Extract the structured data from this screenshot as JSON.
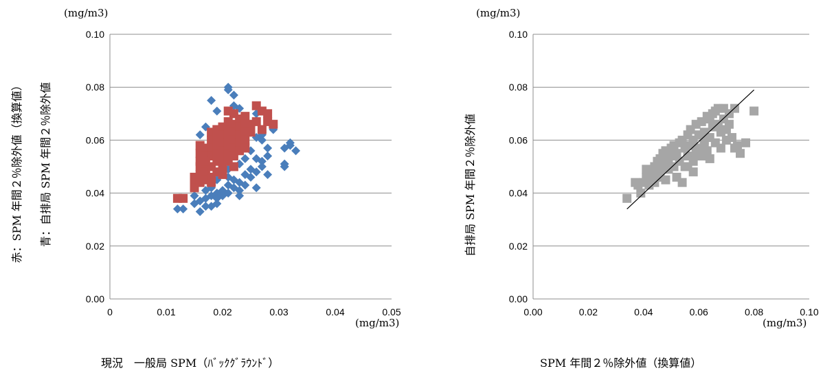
{
  "chart_data": [
    {
      "type": "scatter",
      "xlim": [
        0,
        0.05
      ],
      "ylim": [
        0,
        0.1
      ],
      "x_ticks": [
        "0",
        "0.01",
        "0.02",
        "0.03",
        "0.04",
        "0.05"
      ],
      "y_ticks": [
        "0.00",
        "0.02",
        "0.04",
        "0.06",
        "0.08",
        "0.10"
      ],
      "x_unit": "(mg/m3)",
      "y_unit": "(mg/m3)",
      "xlabel": "現況　一般局 SPM（ﾊﾞｯｸｸﾞﾗｳﾝﾄﾞ）",
      "ylabel_lines": [
        "赤：SPM 年間２％除外値（換算値）",
        "青：自排局 SPM 年間２％除外値"
      ],
      "grid": true,
      "series": [
        {
          "color": "#4a7ebb",
          "marker": "diamond",
          "points": [
            [
              0.012,
              0.034
            ],
            [
              0.013,
              0.034
            ],
            [
              0.015,
              0.036
            ],
            [
              0.016,
              0.033
            ],
            [
              0.016,
              0.037
            ],
            [
              0.017,
              0.035
            ],
            [
              0.017,
              0.038
            ],
            [
              0.018,
              0.035
            ],
            [
              0.018,
              0.039
            ],
            [
              0.019,
              0.036
            ],
            [
              0.019,
              0.04
            ],
            [
              0.019,
              0.038
            ],
            [
              0.02,
              0.041
            ],
            [
              0.02,
              0.039
            ],
            [
              0.021,
              0.04
            ],
            [
              0.021,
              0.043
            ],
            [
              0.022,
              0.042
            ],
            [
              0.022,
              0.045
            ],
            [
              0.023,
              0.044
            ],
            [
              0.023,
              0.041
            ],
            [
              0.024,
              0.047
            ],
            [
              0.024,
              0.043
            ],
            [
              0.025,
              0.046
            ],
            [
              0.025,
              0.049
            ],
            [
              0.026,
              0.042
            ],
            [
              0.026,
              0.048
            ],
            [
              0.027,
              0.05
            ],
            [
              0.027,
              0.052
            ],
            [
              0.028,
              0.047
            ],
            [
              0.028,
              0.054
            ],
            [
              0.028,
              0.057
            ],
            [
              0.031,
              0.05
            ],
            [
              0.031,
              0.051
            ],
            [
              0.031,
              0.057
            ],
            [
              0.032,
              0.058
            ],
            [
              0.032,
              0.059
            ],
            [
              0.033,
              0.056
            ],
            [
              0.018,
              0.075
            ],
            [
              0.021,
              0.08
            ],
            [
              0.021,
              0.079
            ],
            [
              0.022,
              0.077
            ],
            [
              0.019,
              0.071
            ],
            [
              0.022,
              0.073
            ],
            [
              0.016,
              0.062
            ],
            [
              0.017,
              0.065
            ],
            [
              0.023,
              0.072
            ],
            [
              0.024,
              0.066
            ],
            [
              0.025,
              0.064
            ],
            [
              0.026,
              0.061
            ],
            [
              0.027,
              0.06
            ],
            [
              0.025,
              0.056
            ],
            [
              0.024,
              0.053
            ],
            [
              0.023,
              0.051
            ],
            [
              0.022,
              0.05
            ],
            [
              0.021,
              0.046
            ],
            [
              0.02,
              0.047
            ],
            [
              0.026,
              0.053
            ],
            [
              0.024,
              0.058
            ],
            [
              0.029,
              0.064
            ],
            [
              0.027,
              0.062
            ],
            [
              0.023,
              0.039
            ],
            [
              0.021,
              0.049
            ],
            [
              0.02,
              0.052
            ],
            [
              0.019,
              0.045
            ],
            [
              0.018,
              0.042
            ],
            [
              0.017,
              0.041
            ],
            [
              0.016,
              0.044
            ],
            [
              0.015,
              0.039
            ],
            [
              0.026,
              0.07
            ]
          ]
        },
        {
          "color": "#c0504d",
          "marker": "square",
          "points": [
            [
              0.012,
              0.038
            ],
            [
              0.013,
              0.038
            ],
            [
              0.015,
              0.046
            ],
            [
              0.015,
              0.044
            ],
            [
              0.015,
              0.042
            ],
            [
              0.016,
              0.058
            ],
            [
              0.016,
              0.055
            ],
            [
              0.016,
              0.052
            ],
            [
              0.016,
              0.05
            ],
            [
              0.016,
              0.047
            ],
            [
              0.016,
              0.044
            ],
            [
              0.017,
              0.057
            ],
            [
              0.017,
              0.054
            ],
            [
              0.017,
              0.05
            ],
            [
              0.017,
              0.048
            ],
            [
              0.017,
              0.045
            ],
            [
              0.018,
              0.063
            ],
            [
              0.018,
              0.06
            ],
            [
              0.018,
              0.057
            ],
            [
              0.018,
              0.054
            ],
            [
              0.018,
              0.05
            ],
            [
              0.018,
              0.046
            ],
            [
              0.019,
              0.064
            ],
            [
              0.019,
              0.061
            ],
            [
              0.019,
              0.058
            ],
            [
              0.019,
              0.055
            ],
            [
              0.019,
              0.052
            ],
            [
              0.019,
              0.048
            ],
            [
              0.02,
              0.065
            ],
            [
              0.02,
              0.062
            ],
            [
              0.02,
              0.059
            ],
            [
              0.02,
              0.056
            ],
            [
              0.02,
              0.053
            ],
            [
              0.02,
              0.05
            ],
            [
              0.021,
              0.071
            ],
            [
              0.021,
              0.067
            ],
            [
              0.021,
              0.064
            ],
            [
              0.021,
              0.061
            ],
            [
              0.021,
              0.058
            ],
            [
              0.021,
              0.055
            ],
            [
              0.021,
              0.052
            ],
            [
              0.022,
              0.07
            ],
            [
              0.022,
              0.066
            ],
            [
              0.022,
              0.063
            ],
            [
              0.022,
              0.06
            ],
            [
              0.022,
              0.057
            ],
            [
              0.022,
              0.054
            ],
            [
              0.023,
              0.068
            ],
            [
              0.023,
              0.065
            ],
            [
              0.023,
              0.062
            ],
            [
              0.023,
              0.059
            ],
            [
              0.023,
              0.056
            ],
            [
              0.024,
              0.069
            ],
            [
              0.024,
              0.066
            ],
            [
              0.024,
              0.063
            ],
            [
              0.024,
              0.06
            ],
            [
              0.025,
              0.066
            ],
            [
              0.025,
              0.063
            ],
            [
              0.026,
              0.073
            ],
            [
              0.026,
              0.067
            ],
            [
              0.027,
              0.071
            ],
            [
              0.027,
              0.064
            ],
            [
              0.028,
              0.07
            ],
            [
              0.028,
              0.067
            ],
            [
              0.029,
              0.066
            ],
            [
              0.017,
              0.052
            ],
            [
              0.018,
              0.044
            ],
            [
              0.02,
              0.047
            ],
            [
              0.022,
              0.05
            ],
            [
              0.024,
              0.057
            ]
          ]
        }
      ]
    },
    {
      "type": "scatter",
      "xlim": [
        0,
        0.1
      ],
      "ylim": [
        0,
        0.1
      ],
      "x_ticks": [
        "0.00",
        "0.02",
        "0.04",
        "0.06",
        "0.08",
        "0.10"
      ],
      "y_ticks": [
        "0.00",
        "0.02",
        "0.04",
        "0.06",
        "0.08",
        "0.10"
      ],
      "x_unit": "(mg/m3)",
      "y_unit": "(mg/m3)",
      "xlabel": "SPM 年間２％除外値（換算値）",
      "ylabel": "自排局 SPM 年間２％除外値",
      "grid": true,
      "trendline": [
        [
          0.034,
          0.034
        ],
        [
          0.08,
          0.079
        ]
      ],
      "series": [
        {
          "color": "#a6a6a6",
          "marker": "square",
          "points": [
            [
              0.034,
              0.038
            ],
            [
              0.037,
              0.044
            ],
            [
              0.038,
              0.043
            ],
            [
              0.039,
              0.04
            ],
            [
              0.04,
              0.044
            ],
            [
              0.041,
              0.046
            ],
            [
              0.041,
              0.049
            ],
            [
              0.042,
              0.043
            ],
            [
              0.042,
              0.047
            ],
            [
              0.043,
              0.048
            ],
            [
              0.044,
              0.044
            ],
            [
              0.044,
              0.05
            ],
            [
              0.045,
              0.052
            ],
            [
              0.045,
              0.046
            ],
            [
              0.046,
              0.053
            ],
            [
              0.046,
              0.048
            ],
            [
              0.047,
              0.055
            ],
            [
              0.047,
              0.05
            ],
            [
              0.048,
              0.045
            ],
            [
              0.048,
              0.056
            ],
            [
              0.049,
              0.052
            ],
            [
              0.049,
              0.049
            ],
            [
              0.05,
              0.057
            ],
            [
              0.05,
              0.054
            ],
            [
              0.051,
              0.05
            ],
            [
              0.051,
              0.058
            ],
            [
              0.052,
              0.055
            ],
            [
              0.052,
              0.046
            ],
            [
              0.053,
              0.059
            ],
            [
              0.053,
              0.052
            ],
            [
              0.054,
              0.06
            ],
            [
              0.054,
              0.044
            ],
            [
              0.055,
              0.057
            ],
            [
              0.055,
              0.05
            ],
            [
              0.056,
              0.062
            ],
            [
              0.056,
              0.054
            ],
            [
              0.057,
              0.058
            ],
            [
              0.057,
              0.064
            ],
            [
              0.058,
              0.052
            ],
            [
              0.058,
              0.06
            ],
            [
              0.059,
              0.066
            ],
            [
              0.059,
              0.055
            ],
            [
              0.06,
              0.062
            ],
            [
              0.06,
              0.057
            ],
            [
              0.061,
              0.067
            ],
            [
              0.061,
              0.054
            ],
            [
              0.062,
              0.063
            ],
            [
              0.062,
              0.058
            ],
            [
              0.063,
              0.069
            ],
            [
              0.063,
              0.056
            ],
            [
              0.064,
              0.061
            ],
            [
              0.064,
              0.053
            ],
            [
              0.065,
              0.07
            ],
            [
              0.065,
              0.065
            ],
            [
              0.066,
              0.059
            ],
            [
              0.066,
              0.071
            ],
            [
              0.067,
              0.066
            ],
            [
              0.067,
              0.072
            ],
            [
              0.068,
              0.063
            ],
            [
              0.068,
              0.057
            ],
            [
              0.069,
              0.068
            ],
            [
              0.069,
              0.072
            ],
            [
              0.07,
              0.064
            ],
            [
              0.07,
              0.06
            ],
            [
              0.071,
              0.07
            ],
            [
              0.071,
              0.066
            ],
            [
              0.072,
              0.061
            ],
            [
              0.073,
              0.057
            ],
            [
              0.073,
              0.072
            ],
            [
              0.074,
              0.058
            ],
            [
              0.075,
              0.055
            ],
            [
              0.077,
              0.059
            ],
            [
              0.08,
              0.071
            ],
            [
              0.056,
              0.05
            ],
            [
              0.058,
              0.048
            ],
            [
              0.046,
              0.047
            ],
            [
              0.062,
              0.06
            ],
            [
              0.064,
              0.068
            ]
          ]
        }
      ]
    }
  ]
}
